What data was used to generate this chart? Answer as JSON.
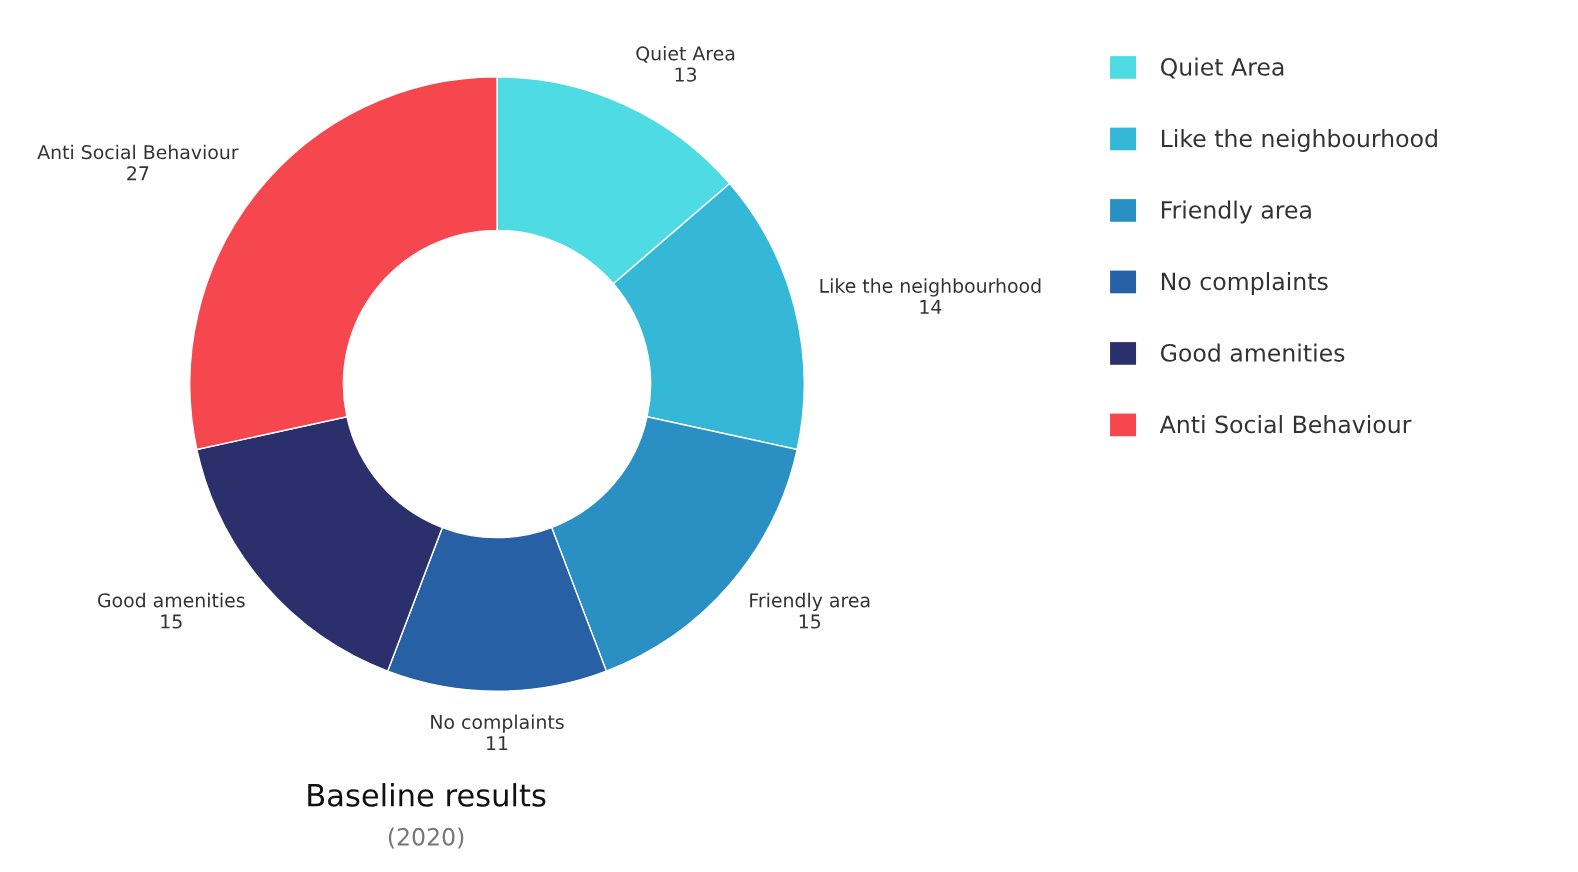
{
  "chart_data": {
    "type": "donut",
    "title": "Baseline results",
    "subtitle": "(2020)",
    "categories": [
      "Quiet Area",
      "Like the neighbourhood",
      "Friendly area",
      "No complaints",
      "Good amenities",
      "Anti Social Behaviour"
    ],
    "values": [
      13,
      14,
      15,
      11,
      15,
      27
    ],
    "colors": [
      "#4fdbe3",
      "#35b8d8",
      "#2a8fc2",
      "#2760a5",
      "#2b2f6c",
      "#f5474d"
    ],
    "data_labels": true,
    "legend": "right"
  }
}
